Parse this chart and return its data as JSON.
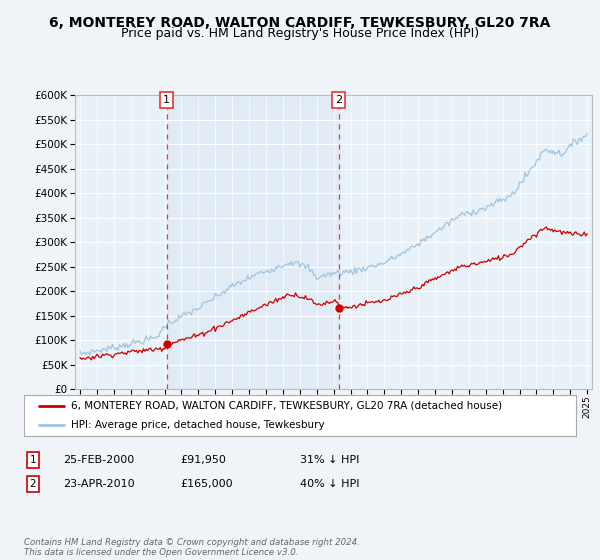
{
  "title": "6, MONTEREY ROAD, WALTON CARDIFF, TEWKESBURY, GL20 7RA",
  "subtitle": "Price paid vs. HM Land Registry's House Price Index (HPI)",
  "title_fontsize": 10,
  "subtitle_fontsize": 9,
  "bg_color": "#f0f4f8",
  "plot_bg_color": "#e8f0f8",
  "legend_line1": "6, MONTEREY ROAD, WALTON CARDIFF, TEWKESBURY, GL20 7RA (detached house)",
  "legend_line2": "HPI: Average price, detached house, Tewkesbury",
  "footer": "Contains HM Land Registry data © Crown copyright and database right 2024.\nThis data is licensed under the Open Government Licence v3.0.",
  "table_rows": [
    {
      "num": "1",
      "date": "25-FEB-2000",
      "price": "£91,950",
      "hpi": "31% ↓ HPI"
    },
    {
      "num": "2",
      "date": "23-APR-2010",
      "price": "£165,000",
      "hpi": "40% ↓ HPI"
    }
  ],
  "marker1_x": 2000.12,
  "marker1_y": 91950,
  "marker2_x": 2010.29,
  "marker2_y": 165000,
  "vline1_x": 2000.12,
  "vline2_x": 2010.29,
  "ylim": [
    0,
    600000
  ],
  "xlim": [
    1994.7,
    2025.3
  ],
  "yticks": [
    0,
    50000,
    100000,
    150000,
    200000,
    250000,
    300000,
    350000,
    400000,
    450000,
    500000,
    550000,
    600000
  ],
  "xticks": [
    1995,
    1996,
    1997,
    1998,
    1999,
    2000,
    2001,
    2002,
    2003,
    2004,
    2005,
    2006,
    2007,
    2008,
    2009,
    2010,
    2011,
    2012,
    2013,
    2014,
    2015,
    2016,
    2017,
    2018,
    2019,
    2020,
    2021,
    2022,
    2023,
    2024,
    2025
  ],
  "hpi_color": "#a0c4e0",
  "price_color": "#cc0000",
  "vline_color": "#ee3333",
  "fill_color": "#cde0f0",
  "marker_color": "#cc0000"
}
